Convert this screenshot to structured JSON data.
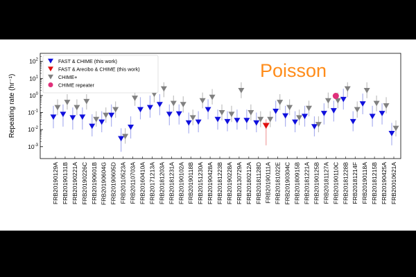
{
  "chart_data": {
    "type": "scatter",
    "title": "",
    "xlabel": "",
    "ylabel": "Repeating rate (hr⁻¹)",
    "yscale": "log",
    "ylim": [
      0.0002,
      300
    ],
    "yticks": [
      {
        "value": 0.001,
        "base": "10",
        "exp": "-3"
      },
      {
        "value": 0.01,
        "base": "10",
        "exp": "-2"
      },
      {
        "value": 0.1,
        "base": "10",
        "exp": "-1"
      },
      {
        "value": 1,
        "base": "10",
        "exp": "0"
      },
      {
        "value": 10,
        "base": "10",
        "exp": "1"
      },
      {
        "value": 100,
        "base": "10",
        "exp": "2"
      }
    ],
    "annotation": "Poisson",
    "legend": {
      "position": "top-left",
      "entries": [
        {
          "label": "FAST & CHIME (this work)",
          "color": "#1010dd",
          "marker": "triangle-down"
        },
        {
          "label": "FAST & Arecibo & CHIME (this work)",
          "color": "#e01010",
          "marker": "triangle-down"
        },
        {
          "label": "CHIME+",
          "color": "#808080",
          "marker": "triangle-down"
        },
        {
          "label": "CHIME repeater",
          "color": "#e0307a",
          "marker": "circle"
        }
      ]
    },
    "categories": [
      "FRB20190129A",
      "FRB20190131B",
      "FRB20190221A",
      "FRB20190226C",
      "FRB20190601B",
      "FRB20190604G",
      "FRB20190605D",
      "FRB20110523A",
      "FRB20110703A",
      "FRB20160410A",
      "FRB20171213A",
      "FRB20181203A",
      "FRB20181231A",
      "FRB20190102A",
      "FRB20190118B",
      "FRB20151230A",
      "FRB20190428A",
      "FRB20181223B",
      "FRB20190228A",
      "FRB20130729A",
      "FRB20180212A",
      "FRB20181128D",
      "FRB20190111A",
      "FRB20181022E",
      "FRB20190304C",
      "FRB20180915B",
      "FRB20181221A",
      "FRB20190125B",
      "FRB20181127A",
      "FRB20190110C",
      "FRB20181228B",
      "FRB20181214F",
      "FRB20190118A",
      "FRB20181215B",
      "FRB20190425A",
      "FRB20010621A"
    ],
    "series": [
      {
        "name": "FAST & CHIME (this work)",
        "color": "#1010dd",
        "values": [
          0.055,
          0.08,
          0.05,
          0.055,
          0.016,
          0.028,
          0.07,
          0.003,
          0.014,
          0.15,
          0.2,
          0.3,
          0.08,
          0.085,
          0.025,
          0.028,
          0.15,
          0.04,
          0.03,
          0.035,
          0.035,
          0.025,
          null,
          0.12,
          0.065,
          0.028,
          0.06,
          0.015,
          0.09,
          0.13,
          0.6,
          0.03,
          0.33,
          0.06,
          0.09,
          0.006
        ],
        "err_low": [
          0.012,
          0.015,
          0.01,
          0.01,
          0.004,
          0.007,
          0.015,
          0.0005,
          0.003,
          0.04,
          0.05,
          0.07,
          0.018,
          0.02,
          0.006,
          0.007,
          0.04,
          0.01,
          0.008,
          0.01,
          0.01,
          0.007,
          null,
          0.03,
          0.015,
          0.007,
          0.015,
          0.004,
          0.02,
          0.03,
          0.15,
          0.008,
          0.08,
          0.015,
          0.02,
          0.0012
        ],
        "err_high": [
          0.25,
          0.3,
          0.2,
          0.2,
          0.08,
          0.12,
          0.3,
          0.012,
          0.06,
          0.8,
          1.0,
          1.2,
          0.3,
          0.3,
          0.1,
          0.12,
          0.6,
          0.15,
          0.12,
          0.15,
          0.15,
          0.1,
          null,
          0.5,
          0.25,
          0.12,
          0.25,
          0.06,
          0.35,
          0.5,
          2.5,
          0.12,
          1.3,
          0.25,
          0.35,
          0.025
        ]
      },
      {
        "name": "FAST & Arecibo & CHIME (this work)",
        "color": "#e01010",
        "values": [
          null,
          null,
          null,
          null,
          null,
          null,
          null,
          null,
          null,
          null,
          null,
          null,
          null,
          null,
          null,
          null,
          null,
          null,
          null,
          null,
          null,
          null,
          0.017,
          null,
          null,
          null,
          null,
          null,
          null,
          null,
          null,
          null,
          null,
          null,
          null,
          null
        ],
        "err_low": [
          null,
          null,
          null,
          null,
          null,
          null,
          null,
          null,
          null,
          null,
          null,
          null,
          null,
          null,
          null,
          null,
          null,
          null,
          null,
          null,
          null,
          null,
          0.0012,
          null,
          null,
          null,
          null,
          null,
          null,
          null,
          null,
          null,
          null,
          null,
          null,
          null
        ],
        "err_high": [
          null,
          null,
          null,
          null,
          null,
          null,
          null,
          null,
          null,
          null,
          null,
          null,
          null,
          null,
          null,
          null,
          null,
          null,
          null,
          null,
          null,
          null,
          0.04,
          null,
          null,
          null,
          null,
          null,
          null,
          null,
          null,
          null,
          null,
          null,
          null,
          null
        ]
      },
      {
        "name": "CHIME+",
        "color": "#808080",
        "values": [
          0.2,
          0.4,
          0.2,
          0.45,
          0.04,
          0.07,
          0.15,
          0.004,
          0.7,
          20,
          1.2,
          2.5,
          0.35,
          0.3,
          0.05,
          0.5,
          0.8,
          0.1,
          0.08,
          2,
          0.1,
          0.04,
          0.04,
          0.4,
          0.2,
          0.05,
          0.18,
          0.02,
          0.5,
          0.5,
          2.5,
          0.15,
          2,
          0.35,
          0.25,
          0.012
        ],
        "err_low": [
          0.07,
          0.15,
          0.07,
          0.15,
          0.015,
          0.025,
          0.05,
          0.0015,
          0.25,
          6,
          0.4,
          0.8,
          0.12,
          0.1,
          0.018,
          0.18,
          0.3,
          0.035,
          0.028,
          0.7,
          0.035,
          0.014,
          0.014,
          0.14,
          0.07,
          0.018,
          0.06,
          0.007,
          0.18,
          0.18,
          0.8,
          0.05,
          0.7,
          0.12,
          0.09,
          0.004
        ],
        "err_high": [
          0.6,
          1.2,
          0.6,
          1.2,
          0.12,
          0.2,
          0.45,
          0.012,
          2,
          40,
          3,
          6,
          1,
          0.9,
          0.15,
          1.5,
          2.4,
          0.3,
          0.25,
          6,
          0.3,
          0.12,
          0.12,
          1.2,
          0.6,
          0.15,
          0.5,
          0.06,
          1.5,
          1.5,
          6,
          0.45,
          6,
          1,
          0.8,
          0.035
        ]
      },
      {
        "name": "CHIME repeater",
        "color": "#e0307a",
        "values": [
          null,
          null,
          null,
          null,
          null,
          null,
          null,
          null,
          null,
          null,
          null,
          null,
          null,
          null,
          null,
          null,
          null,
          null,
          null,
          null,
          null,
          null,
          null,
          null,
          null,
          null,
          null,
          null,
          null,
          0.95,
          null,
          null,
          null,
          null,
          null,
          null
        ]
      }
    ]
  }
}
